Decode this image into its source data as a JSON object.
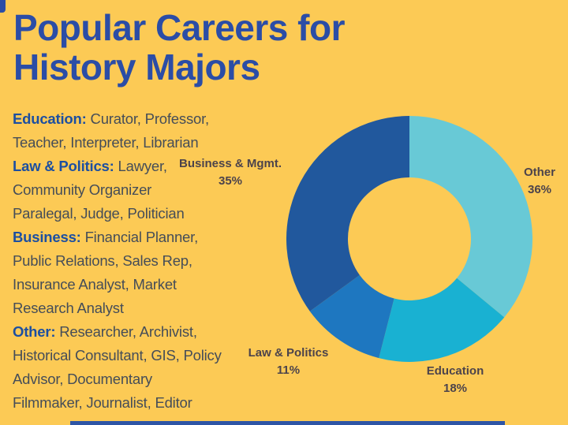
{
  "background_color": "#fcca55",
  "accent_blue": "#2b4da6",
  "title": {
    "line1": "Popular Careers for",
    "line2": "History Majors"
  },
  "career_list": [
    {
      "bold": "Education:",
      "text": " Curator, Professor,"
    },
    {
      "text": "Teacher, Interpreter, Librarian"
    },
    {
      "bold": "Law & Politics:",
      "text": " Lawyer,"
    },
    {
      "text": "Community Organizer"
    },
    {
      "text": "Paralegal, Judge, Politician"
    },
    {
      "bold": "Business:",
      "text": " Financial Planner,"
    },
    {
      "text": "Public Relations, Sales Rep,"
    },
    {
      "text": "Insurance Analyst, Market"
    },
    {
      "text": "Research Analyst"
    },
    {
      "bold": "Other:",
      "text": " Researcher, Archivist,"
    },
    {
      "text": "Historical Consultant, GIS, Policy"
    },
    {
      "text": "Advisor, Documentary"
    },
    {
      "text": "Filmmaker, Journalist, Editor"
    }
  ],
  "chart_data": {
    "type": "pie",
    "subtype": "donut",
    "title": "Popular Careers for History Majors",
    "donut_hole_ratio": 0.5,
    "start_angle": "top",
    "direction": "clockwise",
    "legend_position": "outside-labels",
    "label_color": "#4c434b",
    "segments": [
      {
        "label": "Other",
        "value": 36,
        "display": "36%",
        "color": "#68c9d6"
      },
      {
        "label": "Education",
        "value": 18,
        "display": "18%",
        "color": "#19b1d2"
      },
      {
        "label": "Law & Politics",
        "value": 11,
        "display": "11%",
        "color": "#1e77c0"
      },
      {
        "label": "Business & Mgmt.",
        "value": 35,
        "display": "35%",
        "color": "#21589d"
      }
    ]
  }
}
